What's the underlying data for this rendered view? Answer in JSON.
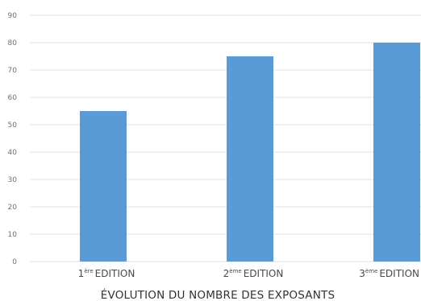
{
  "chart_data": {
    "type": "bar",
    "title": "ÉVOLUTION DU NOMBRE DES EXPOSANTS",
    "categories": [
      {
        "num": "1",
        "sup": "ère",
        "text": "EDITION"
      },
      {
        "num": "2",
        "sup": "ème",
        "text": "EDITION"
      },
      {
        "num": "3",
        "sup": "ème",
        "text": "EDITION"
      }
    ],
    "values": [
      55,
      75,
      80
    ],
    "ylim": [
      0,
      90
    ],
    "yticks": [
      0,
      10,
      20,
      30,
      40,
      50,
      60,
      70,
      80,
      90
    ],
    "grid": true,
    "bar_color": "#5b9bd5",
    "grid_color": "#e6e6e6"
  }
}
